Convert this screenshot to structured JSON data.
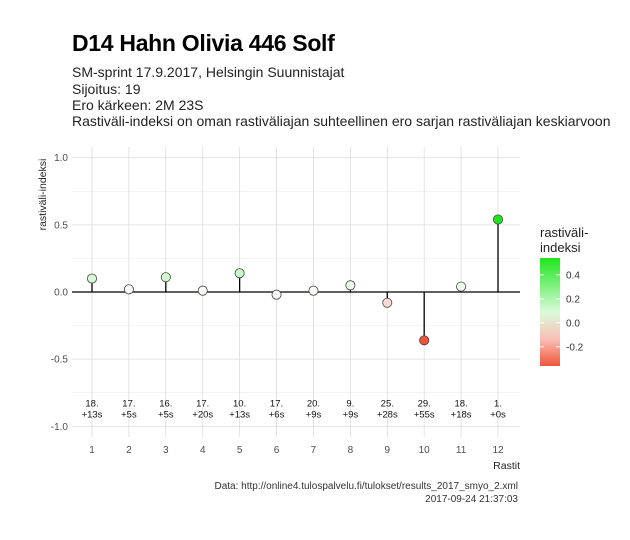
{
  "header": {
    "title": "D14 Hahn Olivia 446 Solf",
    "subtitle_lines": [
      "SM-sprint 17.9.2017, Helsingin Suunnistajat",
      "Sijoitus: 19",
      "Ero kärkeen: 2M 23S",
      "Rastiväli-indeksi on oman rastiväliajan suhteellinen ero sarjan rastiväliajan keskiarvoon"
    ]
  },
  "footer": {
    "source": "Data: http://online4.tulospalvelu.fi/tulokset/results_2017_smyo_2.xml",
    "timestamp": "2017-09-24 21:37:03"
  },
  "chart_data": {
    "type": "lollipop",
    "xlabel": "Rastit",
    "ylabel": "rastiväli-indeksi",
    "ylim": [
      -1.0,
      1.0
    ],
    "yticks": [
      -1.0,
      -0.5,
      0.0,
      0.5,
      1.0
    ],
    "ytick_labels": [
      "-1.0",
      "-0.5",
      "0.0",
      "0.5",
      "1.0"
    ],
    "categories": [
      "1",
      "2",
      "3",
      "4",
      "5",
      "6",
      "7",
      "8",
      "9",
      "10",
      "11",
      "12"
    ],
    "values": [
      0.1,
      0.02,
      0.11,
      0.01,
      0.14,
      -0.02,
      0.01,
      0.05,
      -0.08,
      -0.36,
      0.04,
      0.54
    ],
    "rank_labels": [
      "18.",
      "17.",
      "16.",
      "17.",
      "10.",
      "17.",
      "20.",
      "9.",
      "25.",
      "29.",
      "18.",
      "1."
    ],
    "diff_labels": [
      "+13s",
      "+5s",
      "+5s",
      "+20s",
      "+13s",
      "+6s",
      "+9s",
      "+9s",
      "+28s",
      "+55s",
      "+18s",
      "+0s"
    ],
    "grid": true,
    "legend": {
      "title_lines": [
        "rastiväli-",
        "indeksi"
      ],
      "position": "right",
      "ticks": [
        0.4,
        0.2,
        0.0,
        -0.2
      ],
      "tick_labels": [
        "0.4",
        "0.2",
        "0.0",
        "-0.2"
      ],
      "range": [
        -0.36,
        0.54
      ]
    },
    "colors": {
      "high": "#1ee61e",
      "mid": "#ffffff",
      "low": "#f0553a"
    }
  }
}
